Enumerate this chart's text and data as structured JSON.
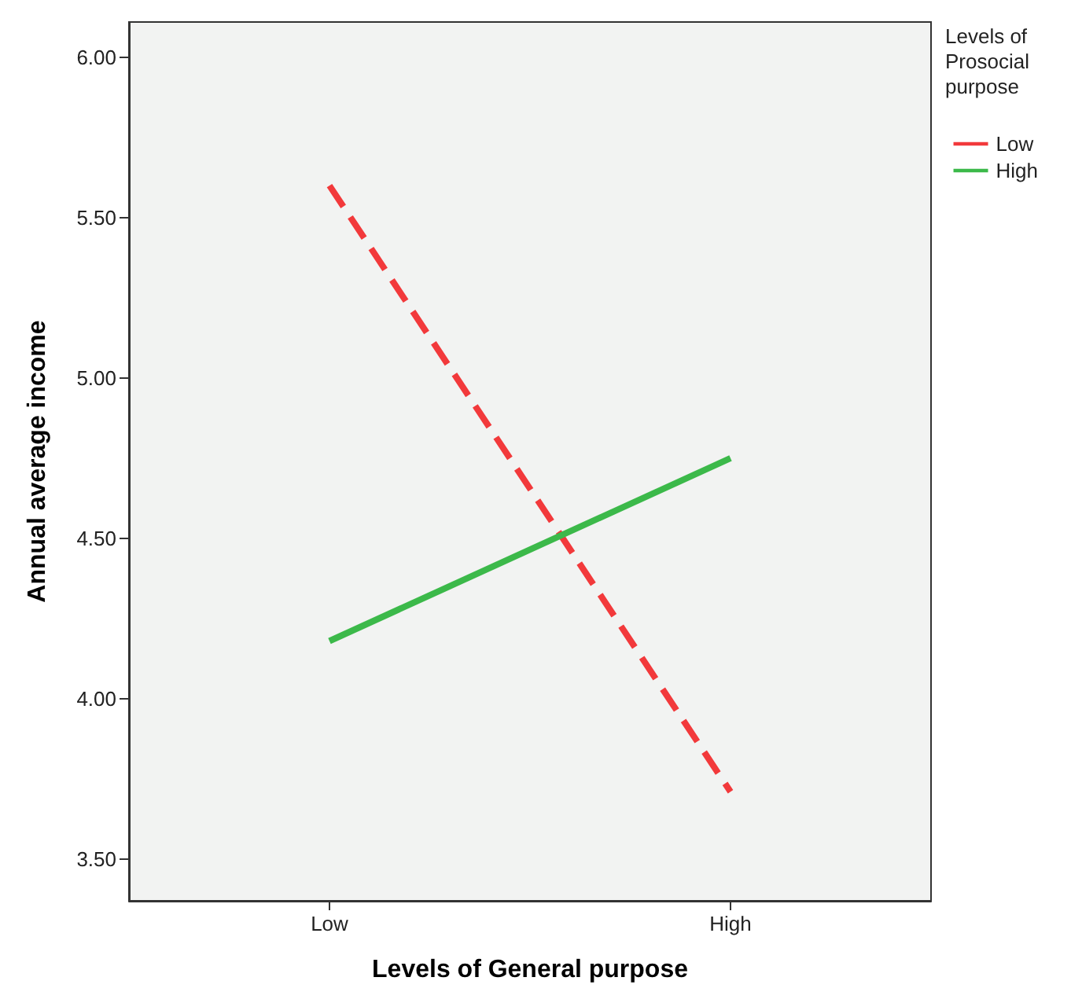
{
  "chart_data": {
    "type": "line",
    "xlabel": "Levels of General purpose",
    "ylabel": "Annual average income",
    "legend_title": "Levels of Prosocial purpose",
    "categories": [
      "Low",
      "High"
    ],
    "series": [
      {
        "name": "Low",
        "color": "#f2393b",
        "values": [
          5.6,
          3.71
        ],
        "line_style": "dashed"
      },
      {
        "name": "High",
        "color": "#3cb94a",
        "values": [
          4.18,
          4.75
        ],
        "line_style": "solid"
      }
    ],
    "ylim": [
      3.37,
      6.11
    ],
    "yticks": [
      {
        "value": 3.5,
        "label": "3.50"
      },
      {
        "value": 4,
        "label": "4.00"
      },
      {
        "value": 4.5,
        "label": "4.50"
      },
      {
        "value": 5,
        "label": "5.00"
      },
      {
        "value": 5.5,
        "label": "5.50"
      },
      {
        "value": 6,
        "label": "6.00"
      }
    ],
    "grid": false,
    "legend": "right",
    "marker": "none"
  }
}
